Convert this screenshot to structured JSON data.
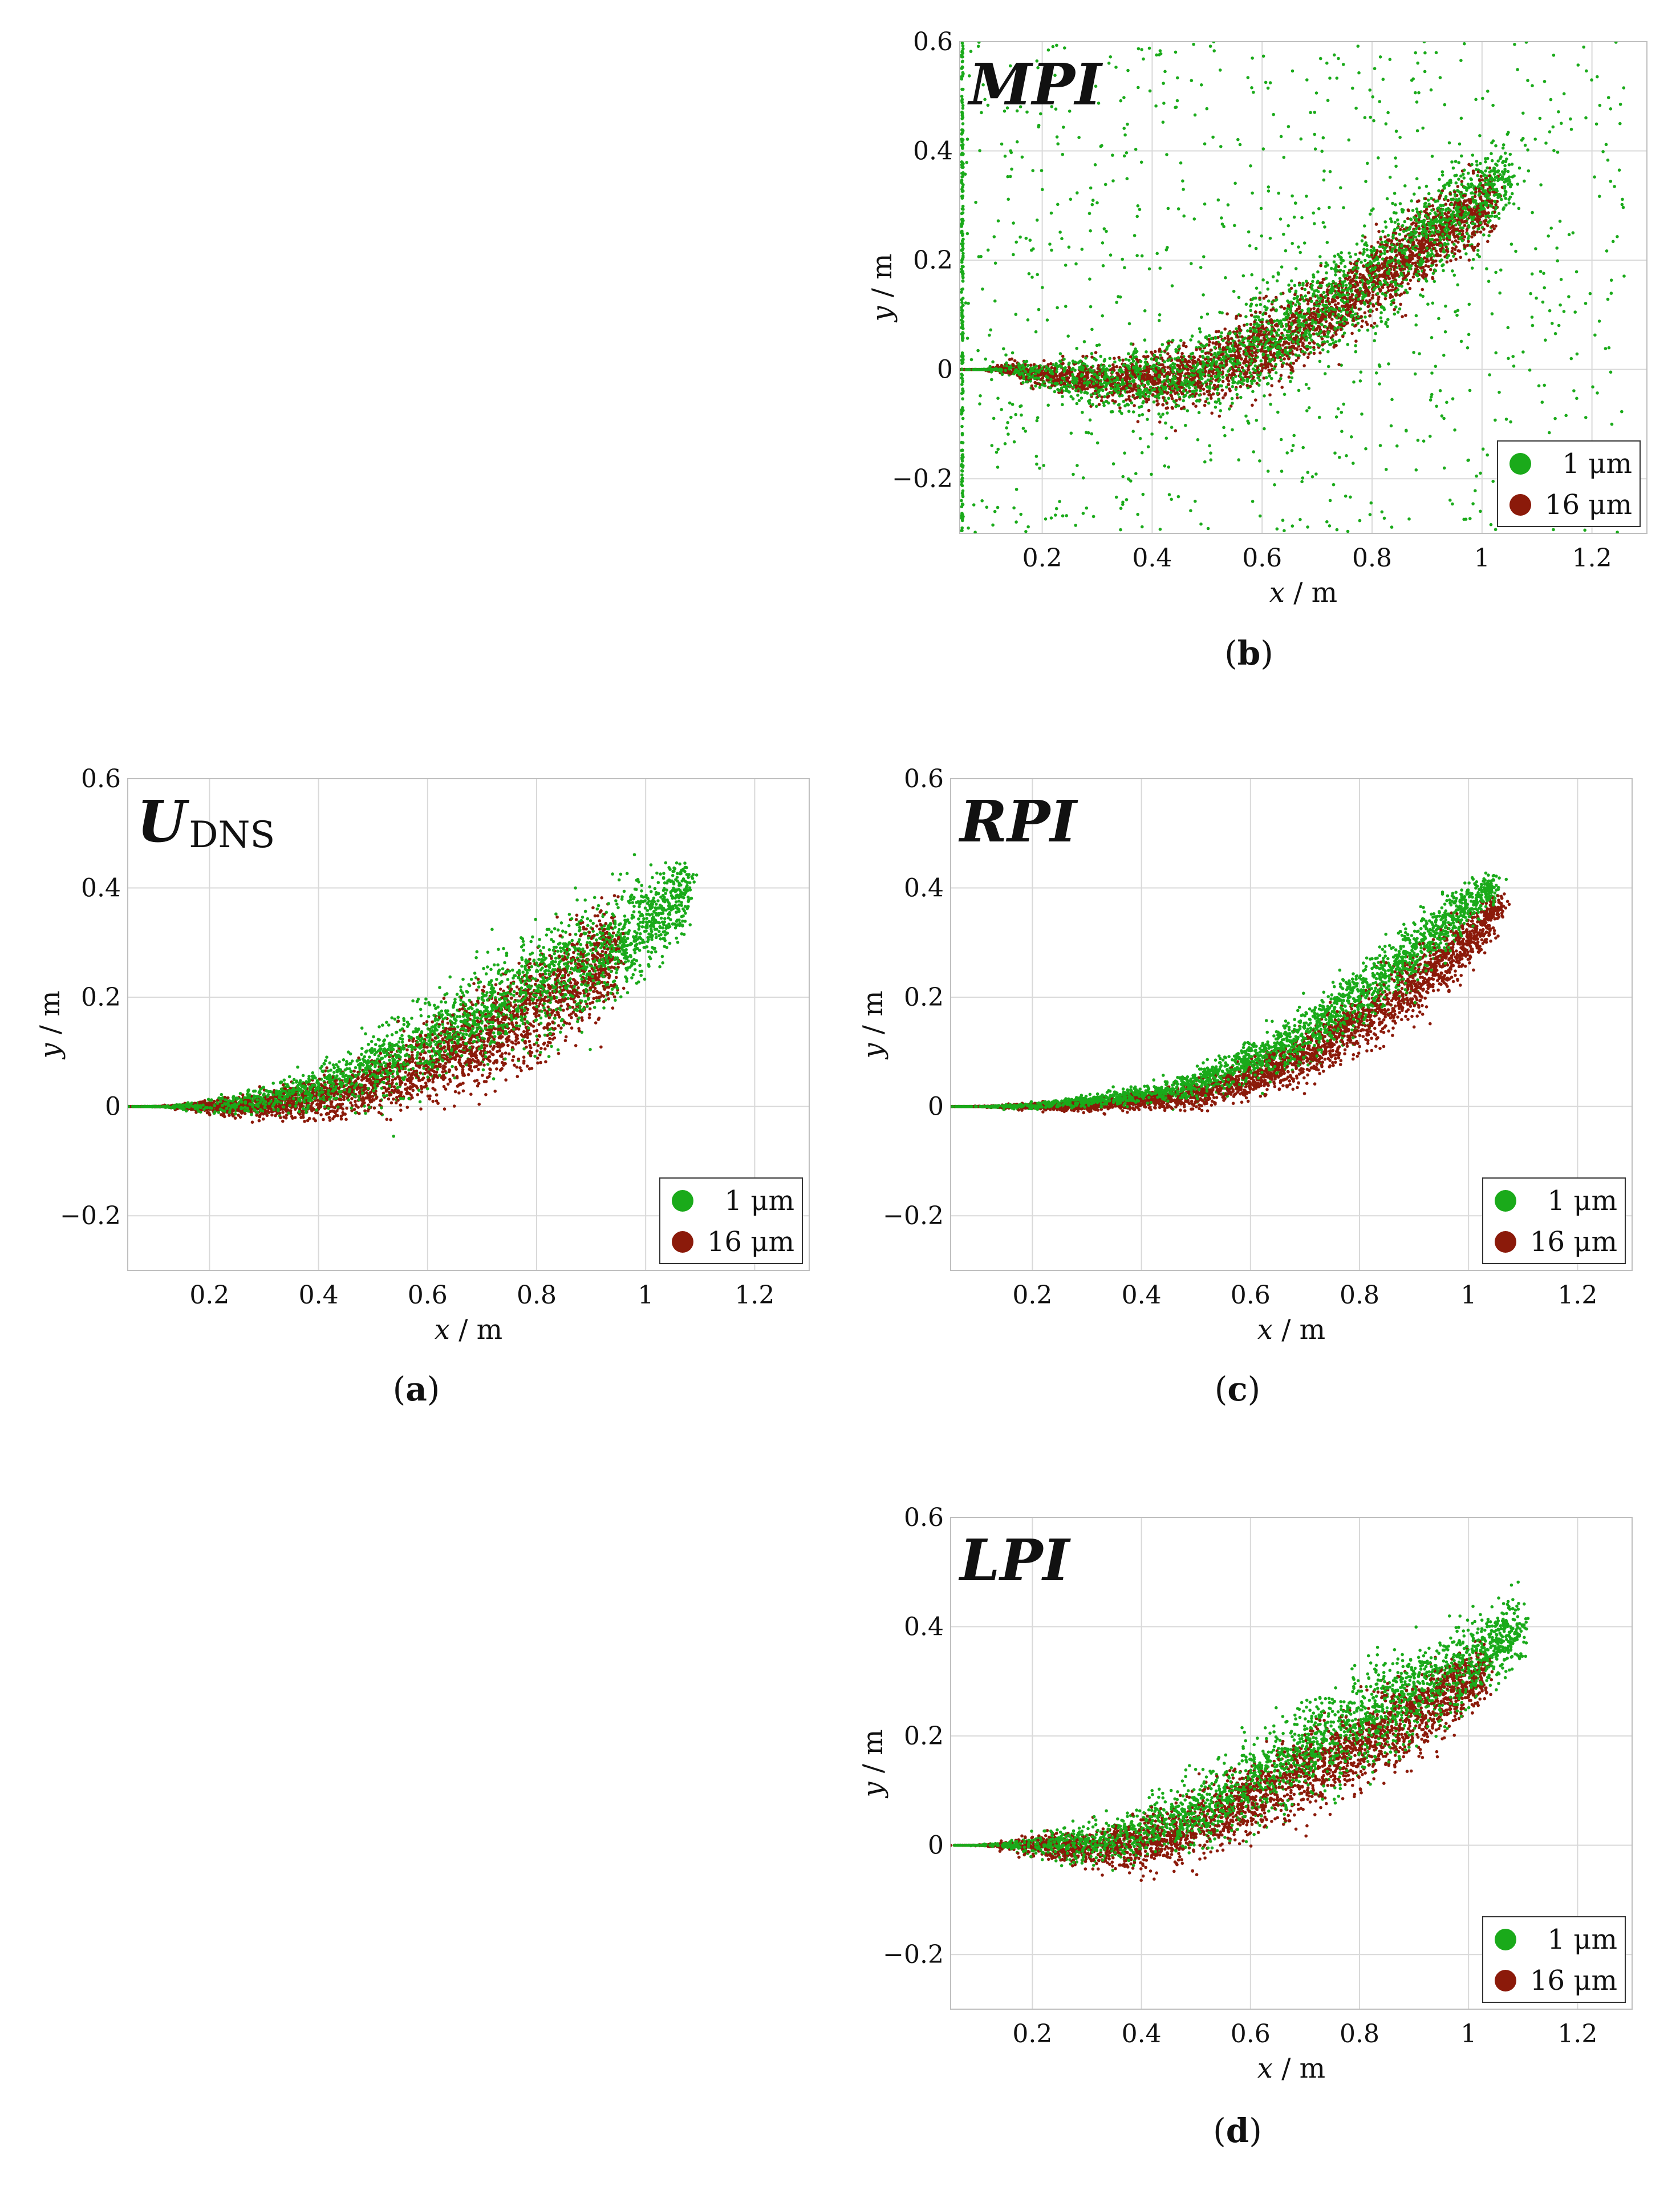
{
  "figure": {
    "colors": {
      "series_1um": "#1aaa1a",
      "series_16um": "#8b1a0a",
      "grid": "#d9d9d9",
      "frame": "#bfbfbf"
    }
  },
  "chart_data": [
    {
      "id": "b",
      "type": "scatter",
      "title": "MPI",
      "caption_letter": "b",
      "xlabel_var": "x",
      "xlabel_unit": "m",
      "ylabel_var": "y",
      "ylabel_unit": "m",
      "xlim": [
        0.05,
        1.3
      ],
      "ylim": [
        -0.3,
        0.6
      ],
      "xticks": [
        0.2,
        0.4,
        0.6,
        0.8,
        1,
        1.2
      ],
      "xtick_labels": [
        "0.2",
        "0.4",
        "0.6",
        "0.8",
        "1",
        "1.2"
      ],
      "yticks": [
        -0.2,
        0,
        0.2,
        0.4,
        0.6
      ],
      "ytick_labels": [
        "−0.2",
        "0",
        "0.2",
        "0.4",
        "0.6"
      ],
      "legend": [
        "1 μm",
        "16 μm"
      ],
      "legend_position": "bottom-right",
      "series": [
        {
          "name": "1 μm",
          "color": "#1aaa1a",
          "x": [
            0.05,
            0.1,
            0.15,
            0.2,
            0.3,
            0.4,
            0.5,
            0.6,
            0.7,
            0.8,
            0.9,
            1.0,
            1.05
          ],
          "y": [
            0.0,
            0.0,
            0.0,
            -0.01,
            -0.02,
            -0.02,
            0.0,
            0.05,
            0.1,
            0.17,
            0.25,
            0.32,
            0.36
          ],
          "spread": [
            0.0,
            0.0,
            0.01,
            0.02,
            0.04,
            0.05,
            0.06,
            0.07,
            0.07,
            0.07,
            0.07,
            0.06,
            0.05
          ],
          "n_core": 2600,
          "n_scatter": 900,
          "wall_x": 0.05
        },
        {
          "name": "16 μm",
          "color": "#8b1a0a",
          "x": [
            0.05,
            0.1,
            0.15,
            0.2,
            0.3,
            0.4,
            0.5,
            0.6,
            0.7,
            0.8,
            0.9,
            1.0,
            1.02
          ],
          "y": [
            0.0,
            0.0,
            0.0,
            -0.01,
            -0.02,
            -0.02,
            -0.01,
            0.04,
            0.09,
            0.16,
            0.23,
            0.3,
            0.31
          ],
          "spread": [
            0.0,
            0.0,
            0.01,
            0.02,
            0.03,
            0.04,
            0.05,
            0.06,
            0.06,
            0.06,
            0.06,
            0.05,
            0.05
          ],
          "n_core": 2800,
          "n_scatter": 0
        }
      ]
    },
    {
      "id": "a",
      "type": "scatter",
      "title": "U",
      "title_sub": "DNS",
      "caption_letter": "a",
      "xlabel_var": "x",
      "xlabel_unit": "m",
      "ylabel_var": "y",
      "ylabel_unit": "m",
      "xlim": [
        0.05,
        1.3
      ],
      "ylim": [
        -0.3,
        0.6
      ],
      "xticks": [
        0.2,
        0.4,
        0.6,
        0.8,
        1,
        1.2
      ],
      "xtick_labels": [
        "0.2",
        "0.4",
        "0.6",
        "0.8",
        "1",
        "1.2"
      ],
      "yticks": [
        -0.2,
        0,
        0.2,
        0.4,
        0.6
      ],
      "ytick_labels": [
        "−0.2",
        "0",
        "0.2",
        "0.4",
        "0.6"
      ],
      "legend": [
        "1 μm",
        "16 μm"
      ],
      "legend_position": "bottom-right",
      "series": [
        {
          "name": "1 μm",
          "color": "#1aaa1a",
          "x": [
            0.05,
            0.1,
            0.15,
            0.2,
            0.3,
            0.4,
            0.5,
            0.6,
            0.7,
            0.8,
            0.9,
            1.0,
            1.08
          ],
          "y": [
            0.0,
            0.0,
            0.0,
            0.0,
            0.01,
            0.03,
            0.07,
            0.12,
            0.17,
            0.22,
            0.27,
            0.33,
            0.4
          ],
          "spread": [
            0.0,
            0.0,
            0.004,
            0.01,
            0.02,
            0.03,
            0.05,
            0.06,
            0.07,
            0.08,
            0.08,
            0.07,
            0.05
          ],
          "n_core": 2800,
          "n_scatter": 0
        },
        {
          "name": "16 μm",
          "color": "#8b1a0a",
          "x": [
            0.05,
            0.1,
            0.15,
            0.2,
            0.3,
            0.4,
            0.5,
            0.6,
            0.7,
            0.8,
            0.9,
            0.95
          ],
          "y": [
            0.0,
            0.0,
            0.0,
            0.0,
            0.0,
            0.01,
            0.04,
            0.08,
            0.12,
            0.18,
            0.25,
            0.28
          ],
          "spread": [
            0.0,
            0.0,
            0.004,
            0.01,
            0.02,
            0.03,
            0.04,
            0.06,
            0.07,
            0.08,
            0.08,
            0.07
          ],
          "n_core": 2600,
          "n_scatter": 0
        }
      ]
    },
    {
      "id": "c",
      "type": "scatter",
      "title": "RPI",
      "caption_letter": "c",
      "xlabel_var": "x",
      "xlabel_unit": "m",
      "ylabel_var": "y",
      "ylabel_unit": "m",
      "xlim": [
        0.05,
        1.3
      ],
      "ylim": [
        -0.3,
        0.6
      ],
      "xticks": [
        0.2,
        0.4,
        0.6,
        0.8,
        1,
        1.2
      ],
      "xtick_labels": [
        "0.2",
        "0.4",
        "0.6",
        "0.8",
        "1",
        "1.2"
      ],
      "yticks": [
        -0.2,
        0,
        0.2,
        0.4,
        0.6
      ],
      "ytick_labels": [
        "−0.2",
        "0",
        "0.2",
        "0.4",
        "0.6"
      ],
      "legend": [
        "1 μm",
        "16 μm"
      ],
      "legend_position": "bottom-right",
      "series": [
        {
          "name": "1 μm",
          "color": "#1aaa1a",
          "x": [
            0.05,
            0.1,
            0.2,
            0.3,
            0.4,
            0.5,
            0.6,
            0.7,
            0.8,
            0.9,
            1.0,
            1.05
          ],
          "y": [
            0.0,
            0.0,
            0.0,
            0.01,
            0.02,
            0.04,
            0.08,
            0.13,
            0.2,
            0.28,
            0.37,
            0.41
          ],
          "spread": [
            0.0,
            0.0,
            0.005,
            0.008,
            0.012,
            0.02,
            0.03,
            0.04,
            0.05,
            0.05,
            0.03,
            0.02
          ],
          "n_core": 2600,
          "n_scatter": 0
        },
        {
          "name": "16 μm",
          "color": "#8b1a0a",
          "x": [
            0.05,
            0.1,
            0.2,
            0.3,
            0.4,
            0.5,
            0.6,
            0.7,
            0.8,
            0.9,
            1.0,
            1.06
          ],
          "y": [
            0.0,
            0.0,
            0.0,
            0.0,
            0.01,
            0.02,
            0.05,
            0.09,
            0.15,
            0.22,
            0.3,
            0.37
          ],
          "spread": [
            0.0,
            0.0,
            0.005,
            0.008,
            0.012,
            0.02,
            0.03,
            0.04,
            0.04,
            0.05,
            0.04,
            0.02
          ],
          "n_core": 2600,
          "n_scatter": 0
        }
      ]
    },
    {
      "id": "d",
      "type": "scatter",
      "title": "LPI",
      "caption_letter": "d",
      "xlabel_var": "x",
      "xlabel_unit": "m",
      "ylabel_var": "y",
      "ylabel_unit": "m",
      "xlim": [
        0.05,
        1.3
      ],
      "ylim": [
        -0.3,
        0.6
      ],
      "xticks": [
        0.2,
        0.4,
        0.6,
        0.8,
        1,
        1.2
      ],
      "xtick_labels": [
        "0.2",
        "0.4",
        "0.6",
        "0.8",
        "1",
        "1.2"
      ],
      "yticks": [
        -0.2,
        0,
        0.2,
        0.4,
        0.6
      ],
      "ytick_labels": [
        "−0.2",
        "0",
        "0.2",
        "0.4",
        "0.6"
      ],
      "legend": [
        "1 μm",
        "16 μm"
      ],
      "legend_position": "bottom-right",
      "series": [
        {
          "name": "1 μm",
          "color": "#1aaa1a",
          "x": [
            0.05,
            0.1,
            0.15,
            0.2,
            0.3,
            0.4,
            0.5,
            0.6,
            0.7,
            0.8,
            0.9,
            1.0,
            1.1
          ],
          "y": [
            0.0,
            0.0,
            0.0,
            0.0,
            0.0,
            0.02,
            0.06,
            0.11,
            0.17,
            0.22,
            0.28,
            0.33,
            0.4
          ],
          "spread": [
            0.0,
            0.0,
            0.005,
            0.015,
            0.03,
            0.04,
            0.05,
            0.06,
            0.07,
            0.07,
            0.07,
            0.06,
            0.05
          ],
          "n_core": 2800,
          "n_scatter": 0
        },
        {
          "name": "16 μm",
          "color": "#8b1a0a",
          "x": [
            0.05,
            0.1,
            0.15,
            0.2,
            0.3,
            0.4,
            0.5,
            0.6,
            0.7,
            0.8,
            0.9,
            1.0,
            1.03
          ],
          "y": [
            0.0,
            0.0,
            0.0,
            0.0,
            -0.01,
            0.0,
            0.03,
            0.08,
            0.13,
            0.18,
            0.24,
            0.3,
            0.32
          ],
          "spread": [
            0.0,
            0.0,
            0.005,
            0.015,
            0.03,
            0.04,
            0.05,
            0.05,
            0.06,
            0.06,
            0.06,
            0.05,
            0.04
          ],
          "n_core": 2600,
          "n_scatter": 0
        }
      ]
    }
  ]
}
